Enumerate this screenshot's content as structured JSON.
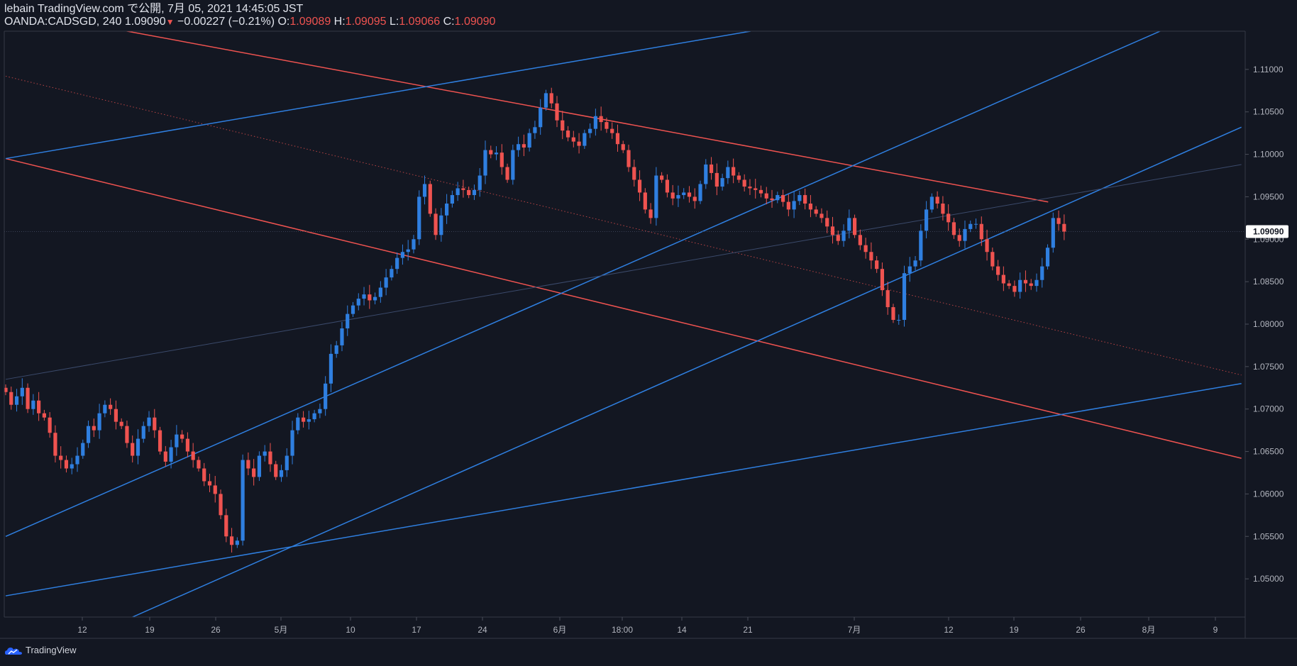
{
  "header": {
    "line1": "lebain TradingView.com で公開, 7月 05, 2021 14:45:05 JST",
    "symbol": "OANDA:CADSGD, 240",
    "last": "1.09090",
    "change": "−0.00227 (−0.21%)",
    "o_label": "O:",
    "o_value": "1.09089",
    "h_label": "H:",
    "h_value": "1.09095",
    "l_label": "L:",
    "l_value": "1.09066",
    "c_label": "C:",
    "c_value": "1.09090"
  },
  "footer": {
    "brand": "TradingView"
  },
  "colors": {
    "background": "#131722",
    "up": "#2f7fe0",
    "down": "#ef5350",
    "grid": "#2a2e39",
    "axis_text": "#b2b5be"
  },
  "chart_data": {
    "type": "candlestick",
    "title": "OANDA:CADSGD, 240",
    "ylim": [
      1.0455,
      1.1145
    ],
    "y_ticks": [
      "1.05000",
      "1.05500",
      "1.06000",
      "1.06500",
      "1.07000",
      "1.07500",
      "1.08000",
      "1.08500",
      "1.09000",
      "1.09500",
      "1.10000",
      "1.10500",
      "1.11000"
    ],
    "x_ticks": [
      "12",
      "19",
      "26",
      "5月",
      "10",
      "17",
      "24",
      "6月",
      "18:00",
      "14",
      "21",
      "7月",
      "12",
      "19",
      "26",
      "8月",
      "9"
    ],
    "last_price_label": "1.09090",
    "series": [
      {
        "name": "CADSGD 4H",
        "values": [
          1.072,
          1.0705,
          1.0715,
          1.0725,
          1.07,
          1.071,
          1.0695,
          1.069,
          1.0672,
          1.0645,
          1.064,
          1.063,
          1.0635,
          1.0645,
          1.066,
          1.068,
          1.0675,
          1.0695,
          1.0705,
          1.07,
          1.0685,
          1.068,
          1.066,
          1.0645,
          1.0665,
          1.068,
          1.069,
          1.0675,
          1.065,
          1.0638,
          1.0655,
          1.067,
          1.0665,
          1.065,
          1.064,
          1.063,
          1.0615,
          1.061,
          1.06,
          1.0575,
          1.055,
          1.054,
          1.0545,
          1.064,
          1.063,
          1.062,
          1.0645,
          1.065,
          1.0635,
          1.062,
          1.0628,
          1.0645,
          1.0675,
          1.069,
          1.0685,
          1.0688,
          1.0695,
          1.07,
          1.073,
          1.0765,
          1.0775,
          1.0795,
          1.0812,
          1.0822,
          1.083,
          1.0835,
          1.0828,
          1.0832,
          1.0843,
          1.0855,
          1.0865,
          1.0878,
          1.0885,
          1.0888,
          1.09,
          1.095,
          1.0965,
          1.093,
          1.0905,
          1.0928,
          1.0942,
          1.0952,
          1.096,
          1.0958,
          1.0952,
          1.0958,
          1.0975,
          1.1005,
          1.1,
          1.1002,
          1.0985,
          1.097,
          1.1005,
          1.1012,
          1.1008,
          1.1025,
          1.1032,
          1.1055,
          1.1072,
          1.106,
          1.104,
          1.1028,
          1.102,
          1.1015,
          1.101,
          1.1025,
          1.103,
          1.1045,
          1.1038,
          1.103,
          1.1025,
          1.1012,
          1.1005,
          1.0985,
          1.097,
          1.0955,
          1.0935,
          1.0925,
          1.0975,
          1.097,
          1.0955,
          1.0948,
          1.0952,
          1.0955,
          1.095,
          1.0945,
          1.0965,
          1.0988,
          1.0978,
          1.0962,
          1.0972,
          1.0985,
          1.0975,
          1.097,
          1.0962,
          1.096,
          1.0958,
          1.0954,
          1.0948,
          1.0946,
          1.0952,
          1.0944,
          1.0935,
          1.0945,
          1.0952,
          1.0942,
          1.0935,
          1.093,
          1.0925,
          1.0915,
          1.0905,
          1.0898,
          1.091,
          1.0925,
          1.0905,
          1.0893,
          1.0885,
          1.0875,
          1.0865,
          1.084,
          1.082,
          1.0805,
          1.0805,
          1.086,
          1.0868,
          1.0875,
          1.091,
          1.0935,
          1.095,
          1.0942,
          1.093,
          1.092,
          1.0905,
          1.0898,
          1.0912,
          1.0918,
          1.0918,
          1.09,
          1.0885,
          1.0868,
          1.0858,
          1.0848,
          1.0845,
          1.0838,
          1.0852,
          1.0848,
          1.0845,
          1.0852,
          1.0868,
          1.089,
          1.0925,
          1.0918,
          1.0909
        ]
      }
    ],
    "drawings": [
      {
        "name": "red-upper-channel",
        "color": "#ef5350",
        "p1": {
          "bar": -120,
          "price": 1.1316
        },
        "p2": {
          "bar": 189.1,
          "price": 1.09439
        }
      },
      {
        "name": "red-lower-channel",
        "color": "#ef5350",
        "p1": {
          "bar": 0,
          "price": 1.0995
        },
        "p2": {
          "bar": 224.15,
          "price": 1.0642
        }
      },
      {
        "name": "red-midline-dotted",
        "color": "#ef5350",
        "style": "dotted",
        "p1": {
          "bar": 0,
          "price": 1.1092
        },
        "p2": {
          "bar": 224.15,
          "price": 1.074
        }
      },
      {
        "name": "blue-top-trend",
        "color": "#2f7fe0",
        "p1": {
          "bar": 0,
          "price": 1.0995
        },
        "p2": {
          "bar": 135.1,
          "price": 1.1145
        }
      },
      {
        "name": "blue-mid-trend",
        "color": "#2f7fe0",
        "p1": {
          "bar": 0,
          "price": 1.055
        },
        "p2": {
          "bar": 209.4,
          "price": 1.1145
        }
      },
      {
        "name": "blue-lower-trend",
        "color": "#2f7fe0",
        "p1": {
          "bar": 23,
          "price": 1.0455
        },
        "p2": {
          "bar": 224.15,
          "price": 1.1032
        }
      },
      {
        "name": "blue-bottom-trend",
        "color": "#2f7fe0",
        "p1": {
          "bar": 0,
          "price": 1.048
        },
        "p2": {
          "bar": 224.15,
          "price": 1.073
        }
      },
      {
        "name": "faint-regression",
        "color": "#3b4a6b",
        "p1": {
          "bar": 0,
          "price": 1.0735
        },
        "p2": {
          "bar": 224.15,
          "price": 1.0988
        }
      }
    ]
  }
}
